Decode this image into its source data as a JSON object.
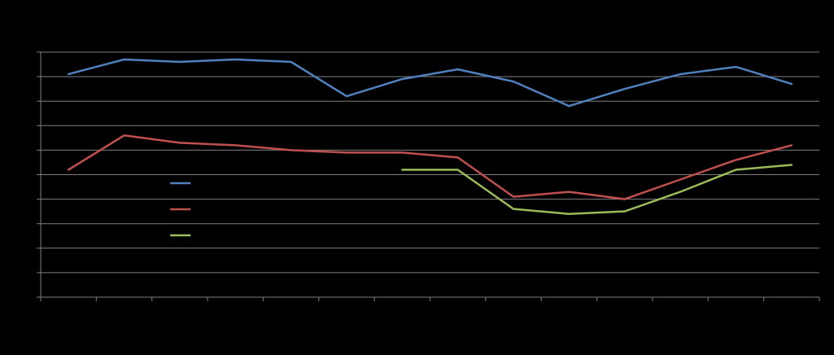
{
  "chart_data": {
    "type": "line",
    "background": "#000000",
    "grid": true,
    "grid_color": "#7f7f7f",
    "axis_color": "#7f7f7f",
    "ylim": [
      0,
      10
    ],
    "x": [
      1,
      2,
      3,
      4,
      5,
      6,
      7,
      8,
      9,
      10,
      11,
      12,
      13,
      14
    ],
    "xlim": [
      0.5,
      14.5
    ],
    "legend_position": "left-center",
    "series": [
      {
        "color": "#4f81bd",
        "values": [
          9.1,
          9.7,
          9.6,
          9.7,
          9.6,
          8.2,
          8.9,
          9.3,
          8.8,
          7.8,
          8.5,
          9.1,
          9.4,
          8.7
        ]
      },
      {
        "color": "#c0504d",
        "values": [
          5.2,
          6.6,
          6.3,
          6.2,
          6.0,
          5.9,
          5.9,
          5.7,
          4.1,
          4.3,
          4.0,
          4.8,
          5.6,
          6.2
        ]
      },
      {
        "color": "#9bbb59",
        "values": [
          null,
          null,
          null,
          null,
          null,
          null,
          5.2,
          5.2,
          3.6,
          3.4,
          3.5,
          4.3,
          5.2,
          5.4
        ]
      }
    ]
  }
}
